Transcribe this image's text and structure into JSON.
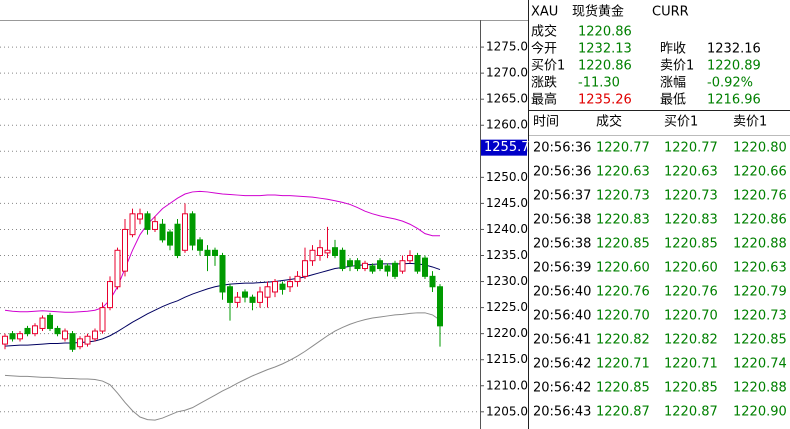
{
  "chart_data": {
    "type": "candlestick",
    "ylim": [
      1201.7,
      1280.2
    ],
    "yticks": [
      {
        "value": 1205,
        "label": "1205.0"
      },
      {
        "value": 1210,
        "label": "1210.0"
      },
      {
        "value": 1215,
        "label": "1215.0"
      },
      {
        "value": 1220,
        "label": "1220.0"
      },
      {
        "value": 1225,
        "label": "1225.0"
      },
      {
        "value": 1230,
        "label": "1230.0"
      },
      {
        "value": 1235,
        "label": "1235.0"
      },
      {
        "value": 1240,
        "label": "1240.0"
      },
      {
        "value": 1245,
        "label": "1245.0"
      },
      {
        "value": 1250,
        "label": "1250.0"
      },
      {
        "value": 1255,
        "label": "1255.0"
      },
      {
        "value": 1260,
        "label": "1260.0"
      },
      {
        "value": 1265,
        "label": "1265.0"
      },
      {
        "value": 1270,
        "label": "1270.0"
      },
      {
        "value": 1275,
        "label": "1275.0"
      }
    ],
    "grid": true,
    "up_color": "#e8002e",
    "down_color": "#009a00",
    "price_marker": 1255.7,
    "price_marker_color": "#0000c8",
    "open": [
      1218,
      1220,
      1219,
      1221,
      1220,
      1221,
      1223.5,
      1221,
      1219,
      1220,
      1217.5,
      1218,
      1219,
      1220.5,
      1225,
      1229,
      1232,
      1239,
      1242,
      1243,
      1240,
      1241,
      1239.5,
      1241,
      1236,
      1243,
      1238,
      1236,
      1236,
      1235,
      1229,
      1226,
      1228,
      1227,
      1226,
      1227,
      1228,
      1229.5,
      1229,
      1230,
      1231,
      1234,
      1235,
      1235.5,
      1236.5,
      1236,
      1234,
      1234,
      1232.5,
      1233,
      1234,
      1233,
      1233.5,
      1232,
      1234,
      1235,
      1234.5,
      1231,
      1229
    ],
    "high": [
      1220,
      1220.5,
      1220.5,
      1221.5,
      1222,
      1223.5,
      1224,
      1221.5,
      1221,
      1220.5,
      1219.5,
      1220,
      1221,
      1226,
      1231,
      1236.5,
      1242,
      1244,
      1244,
      1243.5,
      1242.5,
      1242,
      1240,
      1242,
      1245,
      1243.5,
      1238.5,
      1237,
      1236.5,
      1235.5,
      1229.5,
      1228,
      1228.5,
      1227.5,
      1229,
      1230,
      1230.5,
      1230,
      1231,
      1232,
      1236.5,
      1237,
      1238,
      1240.5,
      1238,
      1236.5,
      1234.5,
      1234.5,
      1234,
      1233.5,
      1234.5,
      1233.5,
      1234,
      1235,
      1236,
      1235.5,
      1235,
      1232,
      1229.5
    ],
    "low": [
      1217,
      1218.5,
      1218.5,
      1219.5,
      1219.5,
      1220.5,
      1220.5,
      1219.5,
      1218.5,
      1216.5,
      1217,
      1217.5,
      1218.5,
      1220,
      1224.5,
      1228.5,
      1231,
      1238.5,
      1241,
      1239,
      1239.5,
      1237.5,
      1236,
      1234.5,
      1235.5,
      1236,
      1235,
      1232,
      1233,
      1226.5,
      1222.5,
      1225,
      1226,
      1224.5,
      1225,
      1225,
      1227,
      1227.5,
      1228,
      1229,
      1230.5,
      1233,
      1234,
      1234.5,
      1234.5,
      1232,
      1232,
      1232,
      1232,
      1231.5,
      1232,
      1231,
      1230.5,
      1231.5,
      1233.5,
      1231.5,
      1230.5,
      1228,
      1217.5
    ],
    "close": [
      1219.5,
      1219,
      1220,
      1220,
      1221.5,
      1223,
      1221,
      1220,
      1220.5,
      1217,
      1219,
      1219.5,
      1220.5,
      1225,
      1230,
      1236,
      1240,
      1243,
      1243,
      1240,
      1241.5,
      1238,
      1237,
      1235,
      1243,
      1237,
      1236,
      1235,
      1235,
      1228,
      1226,
      1227,
      1227,
      1226,
      1228,
      1229,
      1230,
      1228.5,
      1230,
      1231,
      1234,
      1236,
      1236.5,
      1236,
      1235,
      1232.5,
      1233,
      1232.5,
      1233.5,
      1232,
      1232.5,
      1232,
      1231,
      1234,
      1235,
      1232,
      1231,
      1229,
      1221.5
    ],
    "bands": [
      {
        "color": "#d000d0",
        "values": [
          1224.5,
          1224.3,
          1224.2,
          1224.2,
          1224.3,
          1224.4,
          1224.3,
          1224.2,
          1224.1,
          1224.1,
          1224.2,
          1224.3,
          1224.5,
          1225,
          1226.5,
          1229,
          1232.5,
          1236,
          1239,
          1241,
          1242.5,
          1244,
          1245,
          1246,
          1246.8,
          1247.2,
          1247.3,
          1247.2,
          1247,
          1246.8,
          1246.7,
          1246.6,
          1246.5,
          1246.5,
          1246.5,
          1246.6,
          1246.6,
          1246.5,
          1246.5,
          1246.4,
          1246.3,
          1246.2,
          1246,
          1245.8,
          1245.5,
          1245.2,
          1244.8,
          1244.2,
          1243.5,
          1243,
          1242.6,
          1242.3,
          1242,
          1241.6,
          1241,
          1240.2,
          1239.2,
          1238.8,
          1238.8
        ]
      },
      {
        "color": "#000060",
        "values": [
          1217.6,
          1217.7,
          1217.8,
          1217.8,
          1217.9,
          1218,
          1218.1,
          1218.1,
          1218.2,
          1218.2,
          1218.3,
          1218.4,
          1218.6,
          1219,
          1219.6,
          1220.4,
          1221.3,
          1222.2,
          1223,
          1223.8,
          1224.5,
          1225.2,
          1225.8,
          1226.3,
          1227,
          1227.6,
          1228.1,
          1228.6,
          1229,
          1229.3,
          1229.5,
          1229.6,
          1229.7,
          1229.7,
          1229.8,
          1229.9,
          1230,
          1230.2,
          1230.4,
          1230.6,
          1230.9,
          1231.3,
          1231.7,
          1232.1,
          1232.5,
          1232.7,
          1232.9,
          1233.1,
          1233.2,
          1233.3,
          1233.4,
          1233.4,
          1233.4,
          1233.4,
          1233.5,
          1233.4,
          1233.2,
          1232.8,
          1232.3
        ]
      },
      {
        "color": "#8c8c8c",
        "values": [
          1212,
          1211.9,
          1211.8,
          1211.8,
          1211.7,
          1211.6,
          1211.6,
          1211.5,
          1211.4,
          1211.4,
          1211.3,
          1211.3,
          1211.2,
          1210.9,
          1210.2,
          1208.6,
          1206.8,
          1205.2,
          1204,
          1203.5,
          1203.4,
          1203.8,
          1204.4,
          1205,
          1205.3,
          1205.8,
          1206.6,
          1207.4,
          1208.2,
          1209,
          1209.7,
          1210.5,
          1211.2,
          1211.9,
          1212.5,
          1213.1,
          1213.6,
          1214.2,
          1214.9,
          1215.7,
          1216.6,
          1217.6,
          1218.6,
          1219.6,
          1220.5,
          1221.2,
          1221.8,
          1222.3,
          1222.7,
          1223,
          1223.2,
          1223.4,
          1223.6,
          1223.7,
          1223.9,
          1224,
          1224,
          1223.6,
          1222.6
        ]
      }
    ]
  },
  "quote": {
    "symbol": "XAU",
    "name": "现货黄金",
    "code": "CURR",
    "rows": [
      [
        {
          "label": "成交",
          "value": "1220.86",
          "color": "#008000"
        }
      ],
      [
        {
          "label": "今开",
          "value": "1232.13",
          "color": "#008000"
        },
        {
          "label": "昨收",
          "value": "1232.16",
          "color": "#000000"
        }
      ],
      [
        {
          "label": "买价1",
          "value": "1220.86",
          "color": "#008000"
        },
        {
          "label": "卖价1",
          "value": "1220.89",
          "color": "#008000"
        }
      ],
      [
        {
          "label": "涨跌",
          "value": "-11.30",
          "color": "#008000"
        },
        {
          "label": "涨幅",
          "value": "-0.92%",
          "color": "#008000"
        }
      ],
      [
        {
          "label": "最高",
          "value": "1235.26",
          "color": "#e00000"
        },
        {
          "label": "最低",
          "value": "1216.96",
          "color": "#008000"
        }
      ]
    ]
  },
  "trades": {
    "columns": [
      "时间",
      "成交",
      "买价1",
      "卖价1"
    ],
    "price_color": "#008000",
    "rows": [
      [
        "20:56:36",
        "1220.77",
        "1220.77",
        "1220.80"
      ],
      [
        "20:56:36",
        "1220.63",
        "1220.63",
        "1220.66"
      ],
      [
        "20:56:37",
        "1220.73",
        "1220.73",
        "1220.76"
      ],
      [
        "20:56:38",
        "1220.83",
        "1220.83",
        "1220.86"
      ],
      [
        "20:56:38",
        "1220.85",
        "1220.85",
        "1220.88"
      ],
      [
        "20:56:39",
        "1220.60",
        "1220.60",
        "1220.63"
      ],
      [
        "20:56:40",
        "1220.76",
        "1220.76",
        "1220.79"
      ],
      [
        "20:56:40",
        "1220.70",
        "1220.70",
        "1220.73"
      ],
      [
        "20:56:41",
        "1220.82",
        "1220.82",
        "1220.85"
      ],
      [
        "20:56:42",
        "1220.71",
        "1220.71",
        "1220.74"
      ],
      [
        "20:56:42",
        "1220.85",
        "1220.85",
        "1220.88"
      ],
      [
        "20:56:43",
        "1220.87",
        "1220.87",
        "1220.90"
      ]
    ]
  }
}
